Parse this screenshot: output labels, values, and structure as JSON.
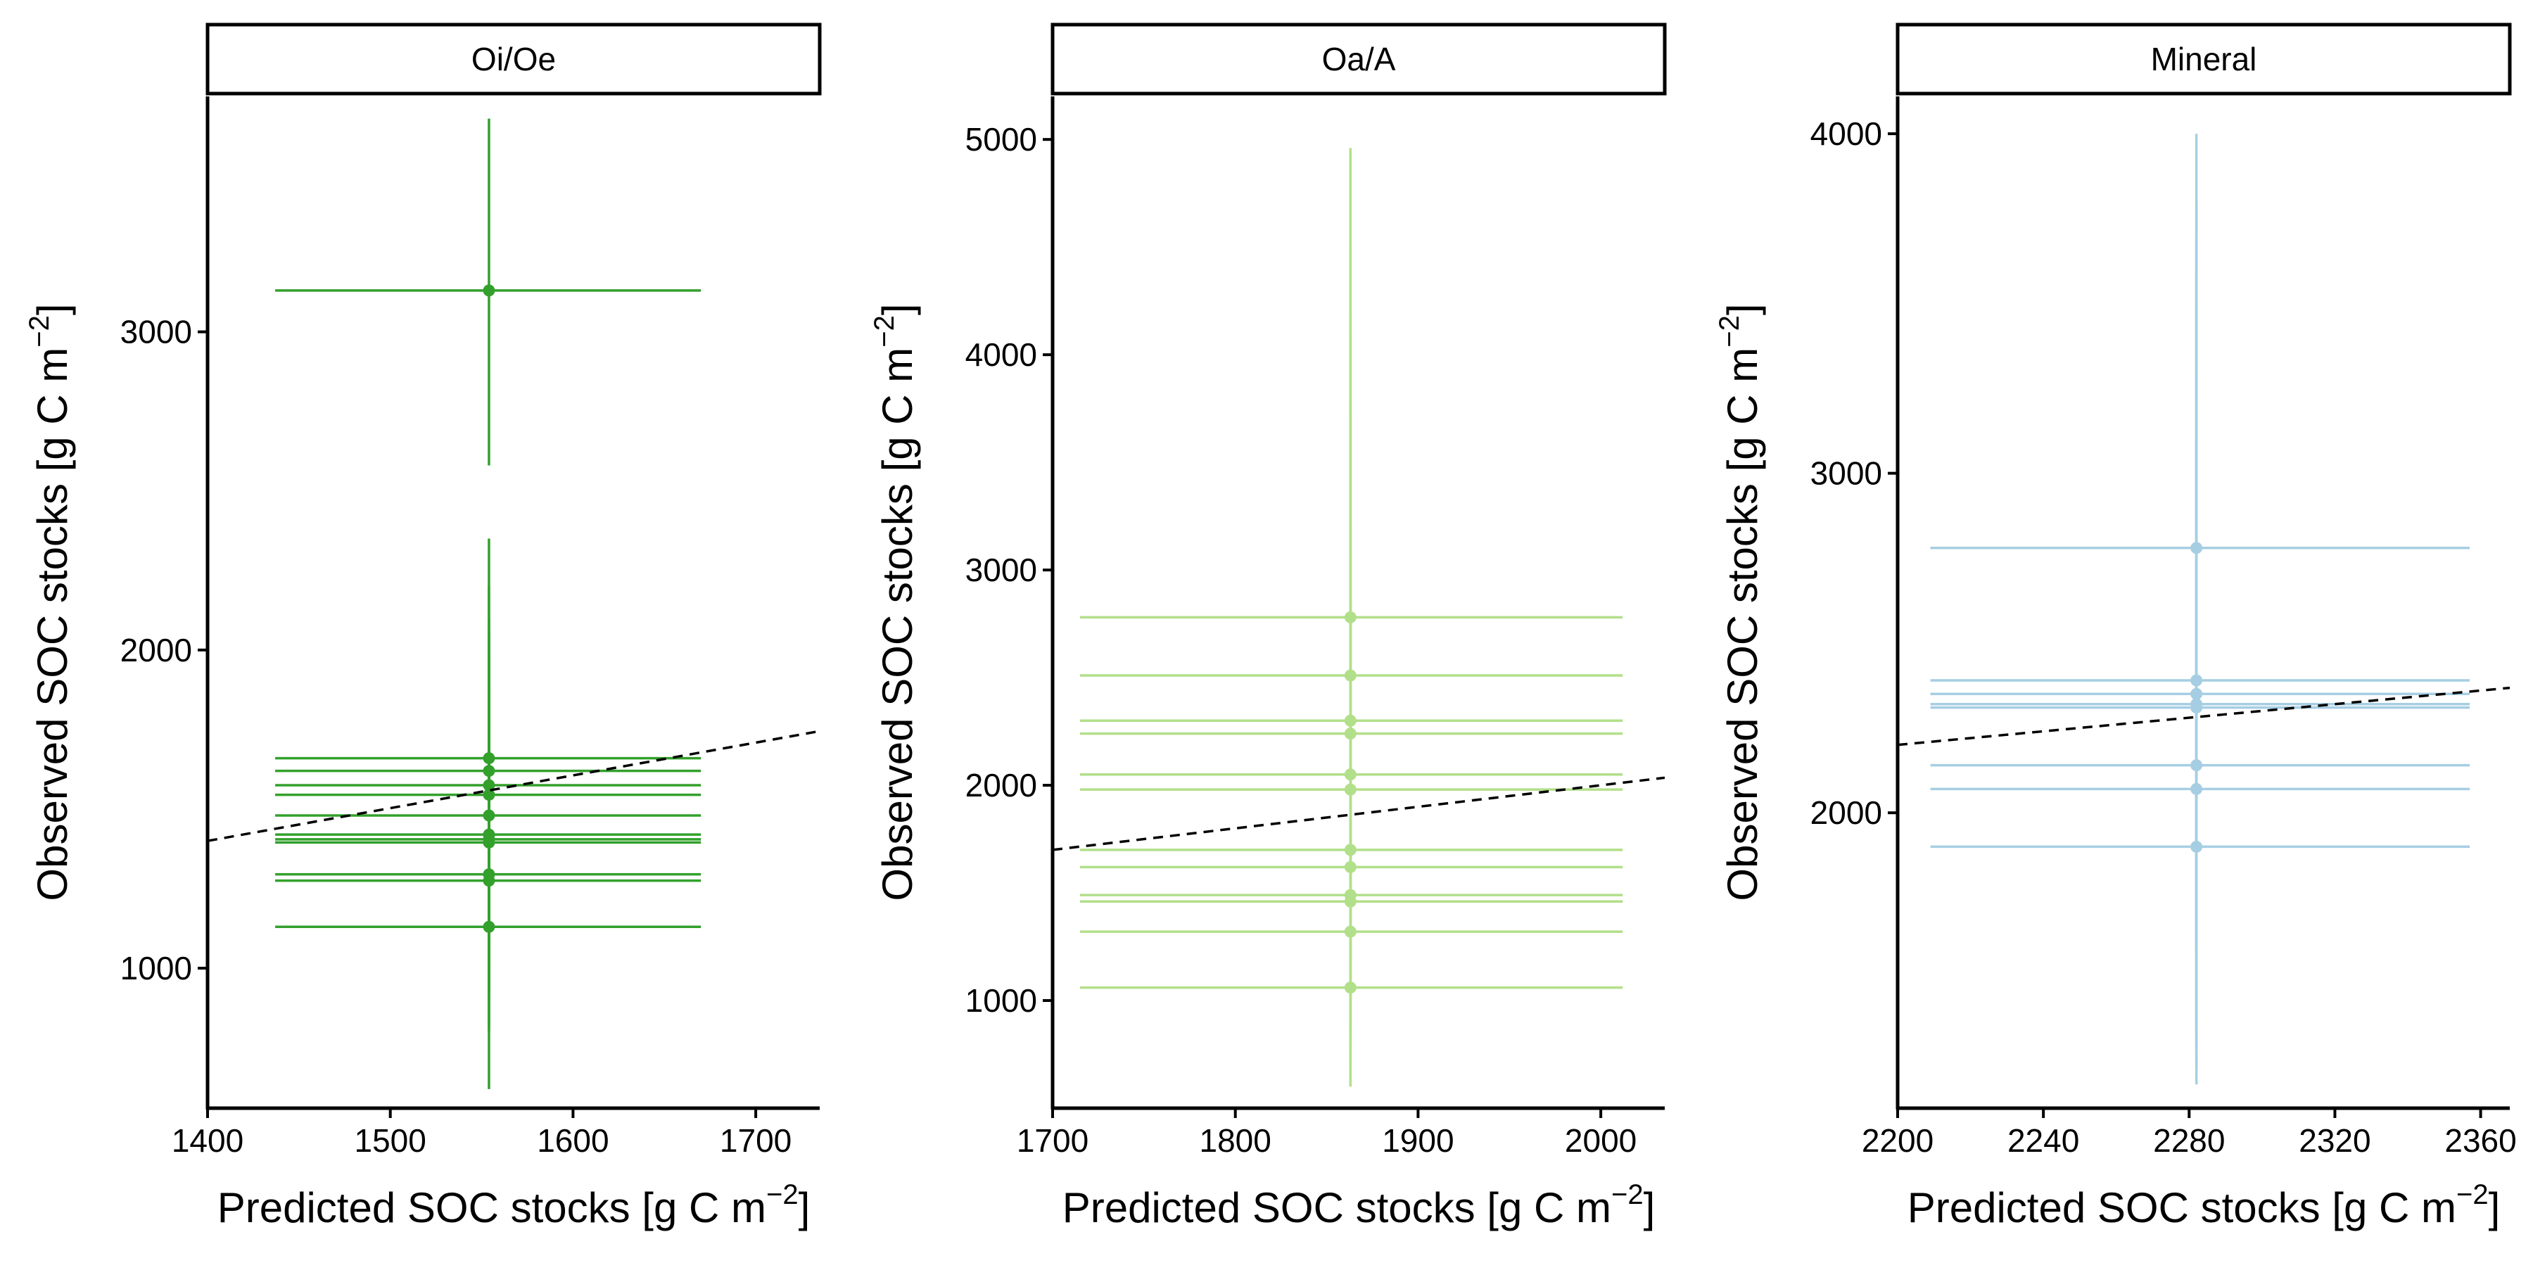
{
  "chart_data": [
    {
      "type": "scatter",
      "panel": "Oi/Oe",
      "color": "#33a02c",
      "xlabel": "Predicted SOC stocks [g C m",
      "ylabel": "Observed SOC stocks [g C m",
      "unit_exponent": "−2",
      "xlim": [
        1400,
        1735
      ],
      "ylim": [
        560,
        3740
      ],
      "xticks": [
        1400,
        1500,
        1600,
        1700
      ],
      "yticks": [
        1000,
        2000,
        3000
      ],
      "fit_line": {
        "x": [
          1400,
          1735
        ],
        "y": [
          1400,
          1745
        ]
      },
      "points": [
        {
          "x": 1554,
          "y": 3130,
          "x_err": [
            1437,
            1670
          ],
          "y_err": [
            2580,
            3670
          ]
        },
        {
          "x": 1554,
          "y": 1660,
          "x_err": [
            1437,
            1670
          ],
          "y_err": [
            1200,
            2350
          ]
        },
        {
          "x": 1554,
          "y": 1620,
          "x_err": [
            1437,
            1670
          ],
          "y_err": [
            1150,
            2200
          ]
        },
        {
          "x": 1554,
          "y": 1575,
          "x_err": [
            1437,
            1670
          ],
          "y_err": [
            1100,
            2100
          ]
        },
        {
          "x": 1554,
          "y": 1545,
          "x_err": [
            1437,
            1670
          ],
          "y_err": [
            1080,
            2050
          ]
        },
        {
          "x": 1554,
          "y": 1480,
          "x_err": [
            1437,
            1670
          ],
          "y_err": [
            1000,
            1980
          ]
        },
        {
          "x": 1554,
          "y": 1420,
          "x_err": [
            1437,
            1670
          ],
          "y_err": [
            950,
            1900
          ]
        },
        {
          "x": 1554,
          "y": 1405,
          "x_err": [
            1437,
            1670
          ],
          "y_err": [
            930,
            1880
          ]
        },
        {
          "x": 1554,
          "y": 1395,
          "x_err": [
            1437,
            1670
          ],
          "y_err": [
            920,
            1870
          ]
        },
        {
          "x": 1554,
          "y": 1295,
          "x_err": [
            1437,
            1670
          ],
          "y_err": [
            820,
            1770
          ]
        },
        {
          "x": 1554,
          "y": 1275,
          "x_err": [
            1437,
            1670
          ],
          "y_err": [
            800,
            1750
          ]
        },
        {
          "x": 1554,
          "y": 1130,
          "x_err": [
            1437,
            1670
          ],
          "y_err": [
            620,
            1640
          ]
        }
      ]
    },
    {
      "type": "scatter",
      "panel": "Oa/A",
      "color": "#b2df8a",
      "xlabel": "Predicted SOC stocks [g C m",
      "ylabel": "Observed SOC stocks [g C m",
      "unit_exponent": "−2",
      "xlim": [
        1700,
        2035
      ],
      "ylim": [
        500,
        5200
      ],
      "xticks": [
        1700,
        1800,
        1900,
        2000
      ],
      "yticks": [
        1000,
        2000,
        3000,
        4000,
        5000
      ],
      "fit_line": {
        "x": [
          1700,
          2035
        ],
        "y": [
          1700,
          2035
        ]
      },
      "points": [
        {
          "x": 1863,
          "y": 2780,
          "x_err": [
            1715,
            2012
          ],
          "y_err": [
            1400,
            4960
          ]
        },
        {
          "x": 1863,
          "y": 2510,
          "x_err": [
            1715,
            2012
          ],
          "y_err": [
            1300,
            4500
          ]
        },
        {
          "x": 1863,
          "y": 2300,
          "x_err": [
            1715,
            2012
          ],
          "y_err": [
            1200,
            4200
          ]
        },
        {
          "x": 1863,
          "y": 2240,
          "x_err": [
            1715,
            2012
          ],
          "y_err": [
            1150,
            4100
          ]
        },
        {
          "x": 1863,
          "y": 2050,
          "x_err": [
            1715,
            2012
          ],
          "y_err": [
            1050,
            3800
          ]
        },
        {
          "x": 1863,
          "y": 1980,
          "x_err": [
            1715,
            2012
          ],
          "y_err": [
            1000,
            3700
          ]
        },
        {
          "x": 1863,
          "y": 1700,
          "x_err": [
            1715,
            2012
          ],
          "y_err": [
            900,
            3200
          ]
        },
        {
          "x": 1863,
          "y": 1620,
          "x_err": [
            1715,
            2012
          ],
          "y_err": [
            850,
            3100
          ]
        },
        {
          "x": 1863,
          "y": 1490,
          "x_err": [
            1715,
            2012
          ],
          "y_err": [
            800,
            2900
          ]
        },
        {
          "x": 1863,
          "y": 1460,
          "x_err": [
            1715,
            2012
          ],
          "y_err": [
            780,
            2850
          ]
        },
        {
          "x": 1863,
          "y": 1320,
          "x_err": [
            1715,
            2012
          ],
          "y_err": [
            700,
            2600
          ]
        },
        {
          "x": 1863,
          "y": 1060,
          "x_err": [
            1715,
            2012
          ],
          "y_err": [
            600,
            2200
          ]
        }
      ]
    },
    {
      "type": "scatter",
      "panel": "Mineral",
      "color": "#a6cee3",
      "xlabel": "Predicted SOC stocks [g C m",
      "ylabel": "Observed SOC stocks [g C m",
      "unit_exponent": "−2",
      "xlim": [
        2200,
        2368
      ],
      "ylim": [
        1130,
        4110
      ],
      "xticks": [
        2200,
        2240,
        2280,
        2320,
        2360
      ],
      "yticks": [
        2000,
        3000,
        4000
      ],
      "fit_line": {
        "x": [
          2200,
          2368
        ],
        "y": [
          2200,
          2368
        ]
      },
      "points": [
        {
          "x": 2282,
          "y": 2780,
          "x_err": [
            2209,
            2357
          ],
          "y_err": [
            1600,
            4000
          ]
        },
        {
          "x": 2282,
          "y": 2390,
          "x_err": [
            2209,
            2357
          ],
          "y_err": [
            1400,
            3800
          ]
        },
        {
          "x": 2282,
          "y": 2350,
          "x_err": [
            2209,
            2357
          ],
          "y_err": [
            1380,
            3700
          ]
        },
        {
          "x": 2282,
          "y": 2320,
          "x_err": [
            2209,
            2357
          ],
          "y_err": [
            1360,
            3600
          ]
        },
        {
          "x": 2282,
          "y": 2310,
          "x_err": [
            2209,
            2357
          ],
          "y_err": [
            1350,
            3500
          ]
        },
        {
          "x": 2282,
          "y": 2140,
          "x_err": [
            2209,
            2357
          ],
          "y_err": [
            1300,
            3300
          ]
        },
        {
          "x": 2282,
          "y": 2070,
          "x_err": [
            2209,
            2357
          ],
          "y_err": [
            1250,
            3200
          ]
        },
        {
          "x": 2282,
          "y": 1900,
          "x_err": [
            2209,
            2357
          ],
          "y_err": [
            1200,
            3100
          ]
        }
      ]
    }
  ]
}
